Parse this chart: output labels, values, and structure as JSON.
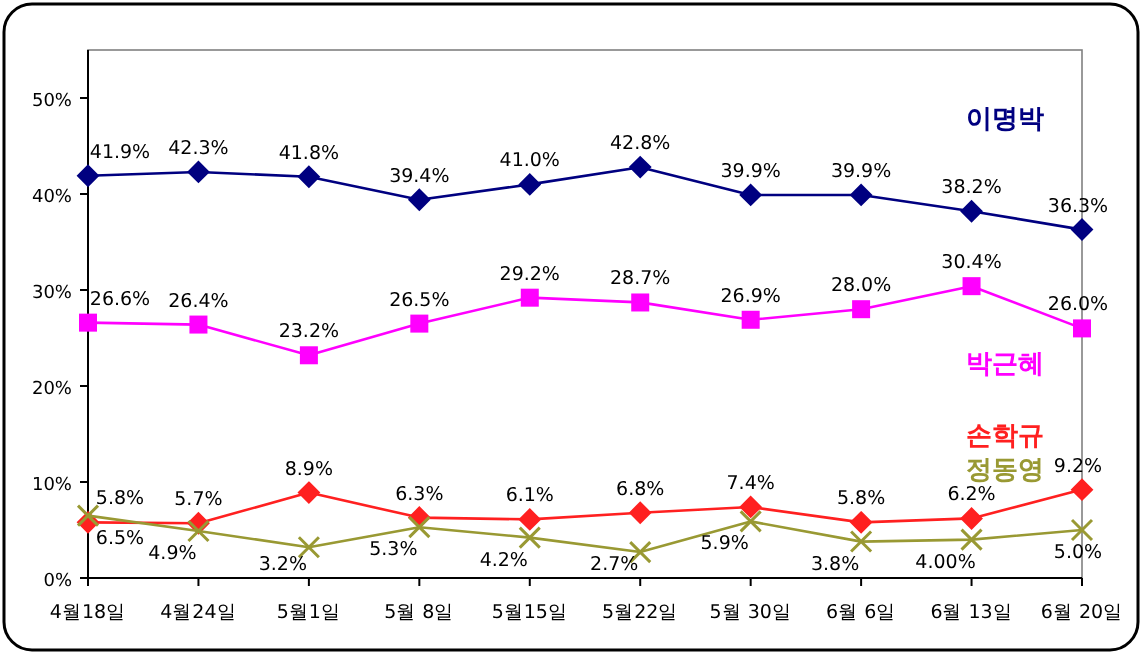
{
  "chart_data": {
    "type": "line",
    "categories": [
      "4월18일",
      "4월24일",
      "5월1일",
      "5월 8일",
      "5월15일",
      "5월22일",
      "5월 30일",
      "6월 6일",
      "6월 13일",
      "6월 20일"
    ],
    "series": [
      {
        "name": "이명박",
        "color": "#000080",
        "marker": "diamond",
        "values": [
          41.9,
          42.3,
          41.8,
          39.4,
          41.0,
          42.8,
          39.9,
          39.9,
          38.2,
          36.3
        ],
        "value_labels": [
          "41.9%",
          "42.3%",
          "41.8%",
          "39.4%",
          "41.0%",
          "42.8%",
          "39.9%",
          "39.9%",
          "38.2%",
          "36.3%"
        ]
      },
      {
        "name": "박근혜",
        "color": "#ff00ff",
        "marker": "square",
        "values": [
          26.6,
          26.4,
          23.2,
          26.5,
          29.2,
          28.7,
          26.9,
          28.0,
          30.4,
          26.0
        ],
        "value_labels": [
          "26.6%",
          "26.4%",
          "23.2%",
          "26.5%",
          "29.2%",
          "28.7%",
          "26.9%",
          "28.0%",
          "30.4%",
          "26.0%"
        ]
      },
      {
        "name": "손학규",
        "color": "#ff2020",
        "marker": "diamond",
        "values": [
          5.8,
          5.7,
          8.9,
          6.3,
          6.1,
          6.8,
          7.4,
          5.8,
          6.2,
          9.2
        ],
        "value_labels": [
          "5.8%",
          "5.7%",
          "8.9%",
          "6.3%",
          "6.1%",
          "6.8%",
          "7.4%",
          "5.8%",
          "6.2%",
          "9.2%"
        ]
      },
      {
        "name": "정동영",
        "color": "#999933",
        "marker": "cross",
        "values": [
          6.5,
          4.9,
          3.2,
          5.3,
          4.2,
          2.7,
          5.9,
          3.8,
          4.0,
          5.0
        ],
        "value_labels": [
          "6.5%",
          "4.9%",
          "3.2%",
          "5.3%",
          "4.2%",
          "2.7%",
          "5.9%",
          "3.8%",
          "4.00%",
          "5.0%"
        ]
      }
    ],
    "ylim": [
      0,
      55
    ],
    "yticks": [
      {
        "value": 0,
        "label": "0%"
      },
      {
        "value": 10,
        "label": "10%"
      },
      {
        "value": 20,
        "label": "20%"
      },
      {
        "value": 30,
        "label": "30%"
      },
      {
        "value": 40,
        "label": "40%"
      },
      {
        "value": 50,
        "label": "50%"
      }
    ],
    "legend": false,
    "grid": false
  }
}
